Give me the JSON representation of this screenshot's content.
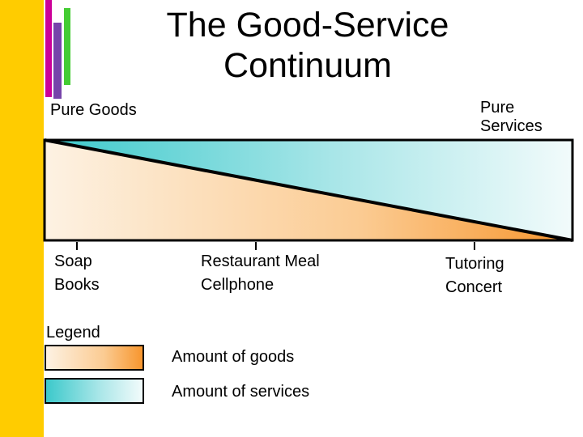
{
  "title": "The Good-Service Continuum",
  "ends": {
    "left": "Pure Goods",
    "right_line1": "Pure",
    "right_line2": "Services"
  },
  "examples": [
    {
      "line1": "Soap",
      "line2": "Books"
    },
    {
      "line1": "Restaurant Meal",
      "line2": "Cellphone"
    },
    {
      "line1": "Tutoring",
      "line2": "Concert"
    }
  ],
  "legend": {
    "heading": "Legend",
    "goods": "Amount of goods",
    "services": "Amount of services"
  },
  "colors": {
    "side_bar": "#FFCC00",
    "accent_pink": "#CC0099",
    "accent_purple": "#7744AA",
    "accent_green": "#44CC33",
    "goods_gradient": [
      "#FDF2E3",
      "#FBCB92",
      "#F7962E"
    ],
    "services_gradient": [
      "#3CC9CB",
      "#A9E6E8",
      "#F2FBFB"
    ]
  }
}
